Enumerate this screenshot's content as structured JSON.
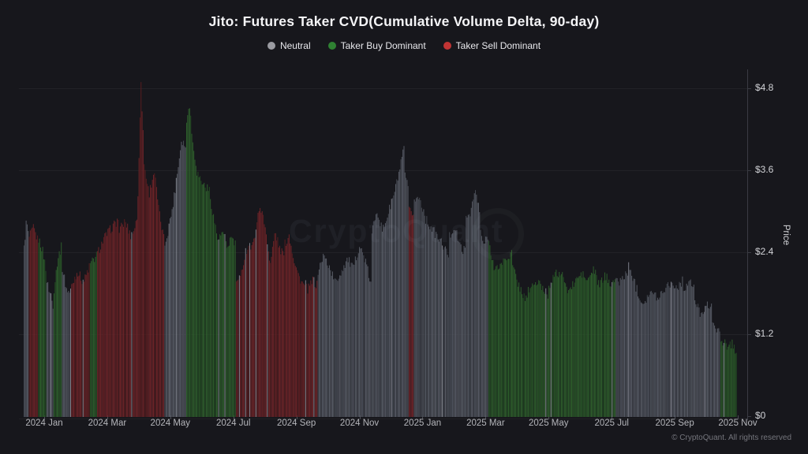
{
  "header": {
    "title": "Jito: Futures Taker CVD(Cumulative Volume Delta, 90-day)"
  },
  "legend": {
    "items": [
      {
        "key": "neutral",
        "label": "Neutral",
        "dot_color": "#9a9ba1"
      },
      {
        "key": "buy",
        "label": "Taker Buy Dominant",
        "dot_color": "#2f8132"
      },
      {
        "key": "sell",
        "label": "Taker Sell Dominant",
        "dot_color": "#c13434"
      }
    ]
  },
  "watermark": {
    "text": "CryptoQuant"
  },
  "footer": {
    "copyright": "© CryptoQuant. All rights reserved"
  },
  "chart_data": {
    "type": "bar",
    "title": "Jito: Futures Taker CVD(Cumulative Volume Delta, 90-day)",
    "xlabel": "",
    "ylabel": "Price",
    "ylim": [
      0,
      4.95
    ],
    "grid": true,
    "legend_position": "top",
    "y_ticks": [
      {
        "label": "$0",
        "value": 0
      },
      {
        "label": "$1.2",
        "value": 1.2
      },
      {
        "label": "$2.4",
        "value": 2.4
      },
      {
        "label": "$3.6",
        "value": 3.6
      },
      {
        "label": "$4.8",
        "value": 4.8
      }
    ],
    "x_ticks": [
      "2024 Jan",
      "2024 Mar",
      "2024 May",
      "2024 Jul",
      "2024 Sep",
      "2024 Nov",
      "2025 Jan",
      "2025 Mar",
      "2025 May",
      "2025 Jul",
      "2025 Sep",
      "2025 Nov"
    ],
    "bar_colors": {
      "neutral": "#585c66",
      "neutral_dark": "#464a53",
      "buy": "#2e5f2c",
      "buy_dark": "#234d23",
      "sell": "#6f2428",
      "sell_dark": "#591d20",
      "neutral_bright": "#7e818b"
    },
    "series_note": "Daily JTO price bars colored by taker CVD regime; span is x-position range in source screenshot px, values are USD price control points read from the chart",
    "segments": [
      {
        "color": "neutral",
        "span": [
          30,
          36
        ],
        "values": [
          2.45,
          2.87,
          2.6
        ]
      },
      {
        "color": "sell",
        "span": [
          36,
          48
        ],
        "values": [
          2.6,
          2.75,
          2.55
        ]
      },
      {
        "color": "buy",
        "span": [
          48,
          58
        ],
        "values": [
          2.6,
          2.45,
          2.15
        ]
      },
      {
        "color": "neutral",
        "span": [
          58,
          67
        ],
        "values": [
          2.0,
          1.62
        ]
      },
      {
        "color": "buy",
        "span": [
          67,
          78
        ],
        "values": [
          1.75,
          2.3,
          2.5
        ]
      },
      {
        "color": "neutral",
        "span": [
          78,
          90
        ],
        "values": [
          2.2,
          1.85,
          1.78
        ]
      },
      {
        "color": "sell",
        "span": [
          90,
          113
        ],
        "values": [
          1.9,
          2.12,
          1.95,
          2.2
        ]
      },
      {
        "color": "buy",
        "span": [
          113,
          122
        ],
        "values": [
          2.2,
          2.35
        ]
      },
      {
        "color": "sell",
        "span": [
          122,
          150
        ],
        "values": [
          2.35,
          2.6,
          2.75,
          2.88
        ]
      },
      {
        "color": "sell",
        "span": [
          150,
          174
        ],
        "values": [
          2.7,
          2.85,
          2.62,
          2.9
        ]
      },
      {
        "color": "sell",
        "span": [
          174,
          182
        ],
        "values": [
          3.1,
          4.9,
          3.9
        ]
      },
      {
        "color": "sell",
        "span": [
          182,
          208
        ],
        "values": [
          3.7,
          3.25,
          3.6,
          2.95,
          2.55
        ]
      },
      {
        "color": "neutral",
        "span": [
          208,
          235
        ],
        "values": [
          2.5,
          2.75,
          3.1,
          3.55,
          4.05,
          3.95
        ]
      },
      {
        "color": "buy",
        "span": [
          235,
          248
        ],
        "values": [
          4.15,
          4.65,
          4.0,
          3.7
        ]
      },
      {
        "color": "buy",
        "span": [
          248,
          265
        ],
        "values": [
          3.6,
          3.4,
          3.3
        ]
      },
      {
        "color": "buy",
        "span": [
          265,
          298
        ],
        "values": [
          3.25,
          2.9,
          2.55,
          2.7,
          2.45,
          2.62,
          2.5
        ]
      },
      {
        "color": "sell",
        "span": [
          298,
          330
        ],
        "values": [
          2.0,
          1.95,
          2.3,
          2.5,
          2.45,
          2.8,
          3.15
        ]
      },
      {
        "color": "sell",
        "span": [
          330,
          360
        ],
        "values": [
          3.05,
          2.75,
          2.2,
          2.7,
          2.45,
          2.35
        ]
      },
      {
        "color": "sell",
        "span": [
          360,
          402
        ],
        "values": [
          2.5,
          2.65,
          2.3,
          2.05,
          1.92,
          1.85,
          1.98,
          1.9
        ]
      },
      {
        "color": "neutral",
        "span": [
          402,
          470
        ],
        "values": [
          2.1,
          2.35,
          2.18,
          1.95,
          2.12,
          2.3,
          2.15,
          2.5,
          2.28,
          1.9
        ]
      },
      {
        "color": "neutral",
        "span": [
          470,
          512
        ],
        "values": [
          2.6,
          3.05,
          2.7,
          2.95,
          3.2,
          3.55,
          3.93
        ]
      },
      {
        "color": "neutral",
        "span": [
          512,
          517
        ],
        "values": [
          3.6,
          3.3
        ]
      },
      {
        "color": "sell",
        "span": [
          517,
          524
        ],
        "values": [
          3.0,
          2.97
        ]
      },
      {
        "color": "neutral",
        "span": [
          524,
          538
        ],
        "values": [
          3.15,
          3.2,
          2.95
        ]
      },
      {
        "color": "neutral",
        "span": [
          538,
          568
        ],
        "values": [
          2.9,
          2.72,
          2.55,
          2.35
        ]
      },
      {
        "color": "neutral",
        "span": [
          568,
          590
        ],
        "values": [
          2.6,
          2.78,
          2.48,
          2.4
        ]
      },
      {
        "color": "neutral",
        "span": [
          590,
          608
        ],
        "values": [
          2.9,
          3.0,
          3.3,
          2.95
        ]
      },
      {
        "color": "neutral",
        "span": [
          608,
          618
        ],
        "values": [
          2.7,
          2.5,
          2.65
        ]
      },
      {
        "color": "buy",
        "span": [
          618,
          625
        ],
        "values": [
          2.6,
          2.25
        ]
      },
      {
        "color": "buy",
        "span": [
          625,
          648
        ],
        "values": [
          2.1,
          2.2,
          2.3,
          2.38
        ]
      },
      {
        "color": "buy",
        "span": [
          648,
          668
        ],
        "values": [
          2.25,
          1.98,
          1.8,
          1.68
        ]
      },
      {
        "color": "buy",
        "span": [
          668,
          695
        ],
        "values": [
          1.82,
          1.92,
          1.95,
          1.85,
          1.75
        ]
      },
      {
        "color": "buy",
        "span": [
          695,
          715
        ],
        "values": [
          1.9,
          2.05,
          2.1,
          2.0
        ]
      },
      {
        "color": "buy",
        "span": [
          715,
          745
        ],
        "values": [
          1.88,
          1.85,
          2.0,
          2.08,
          1.95
        ]
      },
      {
        "color": "buy",
        "span": [
          745,
          780
        ],
        "values": [
          2.0,
          2.15,
          1.9,
          2.05,
          1.95,
          2.0
        ]
      },
      {
        "color": "neutral",
        "span": [
          780,
          805
        ],
        "values": [
          1.95,
          2.0,
          2.15,
          1.95
        ]
      },
      {
        "color": "neutral",
        "span": [
          805,
          832
        ],
        "values": [
          1.9,
          1.65,
          1.8,
          1.75
        ]
      },
      {
        "color": "neutral",
        "span": [
          832,
          865
        ],
        "values": [
          1.7,
          1.85,
          1.95,
          1.88,
          1.98
        ]
      },
      {
        "color": "neutral",
        "span": [
          865,
          880
        ],
        "values": [
          1.85,
          1.96,
          1.88
        ]
      },
      {
        "color": "neutral",
        "span": [
          880,
          902
        ],
        "values": [
          1.68,
          1.5,
          1.62,
          1.57
        ]
      },
      {
        "color": "neutral",
        "span": [
          902,
          912
        ],
        "values": [
          1.45,
          1.3,
          1.17
        ]
      },
      {
        "color": "buy",
        "span": [
          912,
          933
        ],
        "values": [
          1.05,
          1.1,
          1.0,
          1.08,
          0.9
        ]
      }
    ]
  }
}
